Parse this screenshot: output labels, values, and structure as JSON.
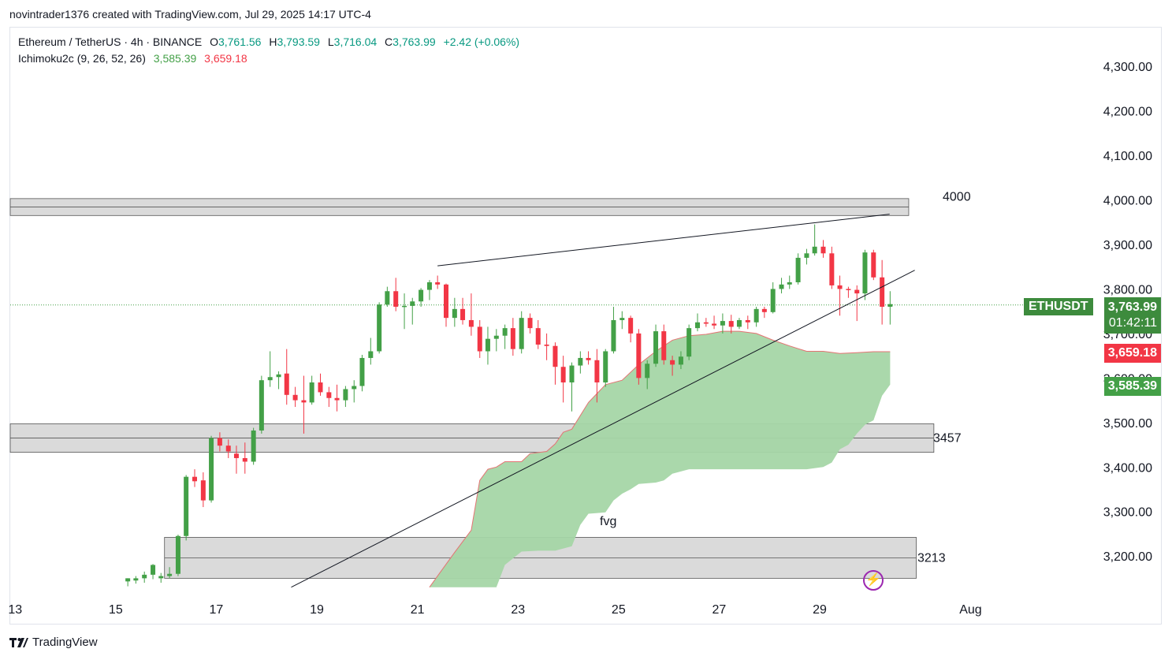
{
  "credit": "novintrader1376 created with TradingView.com, Jul 29, 2025 14:17 UTC-4",
  "legend": {
    "symbol": "Ethereum / TetherUS · 4h · BINANCE",
    "o_label": "O",
    "o": "3,761.56",
    "h_label": "H",
    "h": "3,793.59",
    "l_label": "L",
    "l": "3,716.04",
    "c_label": "C",
    "c": "3,763.99",
    "change": "+2.42 (+0.06%)",
    "indicator": "Ichimoku2c (9, 26, 52, 26)",
    "ind_v1": "3,585.39",
    "ind_v2": "3,659.18"
  },
  "badges": {
    "symbol": "ETHUSDT",
    "price": "3,763.99",
    "countdown": "01:42:11",
    "red_level": "3,659.18",
    "green_level": "3,585.39"
  },
  "annotations": {
    "z4000": "4000",
    "z3457": "3457",
    "z3213": "3213",
    "fvg": "fvg"
  },
  "brand": "TradingView",
  "colors": {
    "up": "#43a047",
    "down": "#f23645",
    "cloud": "#a5d6a7",
    "zone": "#d4d4d4",
    "price_line": "#43a047"
  },
  "icons": {
    "brand": "tradingview-logo-icon",
    "bolt": "lightning-icon"
  },
  "chart_data": {
    "type": "candlestick",
    "title": "Ethereum / TetherUS · 4h · BINANCE",
    "ylim": [
      3130,
      4380
    ],
    "y_ticks": [
      3200,
      3300,
      3400,
      3500,
      3600,
      3700,
      3800,
      3900,
      4000,
      4100,
      4200,
      4300
    ],
    "y_tick_labels": [
      "3,200.00",
      "3,300.00",
      "3,400.00",
      "3,500.00",
      "3,600.00",
      "3,700.00",
      "3,800.00",
      "3,900.00",
      "4,000.00",
      "4,100.00",
      "4,200.00",
      "4,300.00"
    ],
    "x_ticks": [
      {
        "label": "13",
        "x": -8.57
      },
      {
        "label": "15",
        "x": -6.57
      },
      {
        "label": "17",
        "x": -4.57
      },
      {
        "label": "19",
        "x": -2.57
      },
      {
        "label": "21",
        "x": -0.57
      },
      {
        "label": "23",
        "x": 1.43
      },
      {
        "label": "25",
        "x": 3.43
      },
      {
        "label": "27",
        "x": 5.43
      },
      {
        "label": "29",
        "x": 7.43
      },
      {
        "label": "Aug",
        "x": 10.43
      }
    ],
    "candles": [
      [
        -6.33,
        3143,
        3150,
        3132,
        3150
      ],
      [
        -6.17,
        3145,
        3155,
        3138,
        3150
      ],
      [
        -6.0,
        3150,
        3165,
        3140,
        3158
      ],
      [
        -5.83,
        3158,
        3182,
        3148,
        3180
      ],
      [
        -5.67,
        3150,
        3162,
        3140,
        3155
      ],
      [
        -5.5,
        3155,
        3175,
        3150,
        3160
      ],
      [
        -5.33,
        3160,
        3248,
        3155,
        3245
      ],
      [
        -5.17,
        3245,
        3382,
        3235,
        3378
      ],
      [
        -5.0,
        3378,
        3395,
        3355,
        3368
      ],
      [
        -4.83,
        3370,
        3388,
        3310,
        3325
      ],
      [
        -4.67,
        3325,
        3470,
        3320,
        3465
      ],
      [
        -4.5,
        3465,
        3478,
        3435,
        3448
      ],
      [
        -4.33,
        3448,
        3462,
        3420,
        3435
      ],
      [
        -4.17,
        3430,
        3448,
        3385,
        3420
      ],
      [
        -4.0,
        3420,
        3455,
        3385,
        3412
      ],
      [
        -3.83,
        3412,
        3488,
        3405,
        3482
      ],
      [
        -3.67,
        3482,
        3605,
        3475,
        3595
      ],
      [
        -3.5,
        3595,
        3660,
        3580,
        3602
      ],
      [
        -3.33,
        3602,
        3615,
        3575,
        3608
      ],
      [
        -3.17,
        3610,
        3665,
        3540,
        3562
      ],
      [
        -3.0,
        3562,
        3580,
        3535,
        3550
      ],
      [
        -2.83,
        3550,
        3605,
        3475,
        3545
      ],
      [
        -2.67,
        3545,
        3605,
        3540,
        3590
      ],
      [
        -2.5,
        3590,
        3610,
        3560,
        3568
      ],
      [
        -2.33,
        3568,
        3580,
        3535,
        3555
      ],
      [
        -2.17,
        3555,
        3585,
        3525,
        3550
      ],
      [
        -2.0,
        3550,
        3582,
        3535,
        3575
      ],
      [
        -1.83,
        3575,
        3595,
        3545,
        3582
      ],
      [
        -1.67,
        3582,
        3652,
        3570,
        3645
      ],
      [
        -1.5,
        3645,
        3690,
        3630,
        3660
      ],
      [
        -1.33,
        3660,
        3770,
        3655,
        3765
      ],
      [
        -1.17,
        3765,
        3805,
        3760,
        3795
      ],
      [
        -1.0,
        3795,
        3825,
        3750,
        3760
      ],
      [
        -0.83,
        3760,
        3790,
        3710,
        3762
      ],
      [
        -0.67,
        3762,
        3780,
        3720,
        3772
      ],
      [
        -0.5,
        3772,
        3802,
        3760,
        3798
      ],
      [
        -0.33,
        3798,
        3820,
        3775,
        3815
      ],
      [
        -0.17,
        3815,
        3830,
        3800,
        3810
      ],
      [
        0.0,
        3810,
        3812,
        3715,
        3735
      ],
      [
        0.17,
        3735,
        3780,
        3715,
        3755
      ],
      [
        0.33,
        3755,
        3780,
        3720,
        3730
      ],
      [
        0.5,
        3730,
        3790,
        3695,
        3715
      ],
      [
        0.67,
        3715,
        3730,
        3645,
        3660
      ],
      [
        0.83,
        3660,
        3715,
        3630,
        3688
      ],
      [
        1.0,
        3688,
        3710,
        3660,
        3695
      ],
      [
        1.17,
        3695,
        3720,
        3665,
        3712
      ],
      [
        1.33,
        3712,
        3735,
        3650,
        3665
      ],
      [
        1.5,
        3665,
        3750,
        3655,
        3735
      ],
      [
        1.67,
        3735,
        3745,
        3700,
        3712
      ],
      [
        1.83,
        3712,
        3730,
        3665,
        3675
      ],
      [
        2.0,
        3675,
        3700,
        3640,
        3672
      ],
      [
        2.17,
        3672,
        3680,
        3585,
        3625
      ],
      [
        2.33,
        3625,
        3650,
        3545,
        3590
      ],
      [
        2.5,
        3590,
        3635,
        3525,
        3628
      ],
      [
        2.67,
        3628,
        3660,
        3610,
        3645
      ],
      [
        2.83,
        3645,
        3660,
        3630,
        3640
      ],
      [
        3.0,
        3640,
        3665,
        3545,
        3590
      ],
      [
        3.17,
        3590,
        3665,
        3580,
        3660
      ],
      [
        3.33,
        3660,
        3760,
        3655,
        3730
      ],
      [
        3.5,
        3730,
        3750,
        3710,
        3735
      ],
      [
        3.67,
        3735,
        3740,
        3680,
        3700
      ],
      [
        3.83,
        3700,
        3710,
        3585,
        3600
      ],
      [
        4.0,
        3600,
        3640,
        3575,
        3632
      ],
      [
        4.17,
        3632,
        3720,
        3625,
        3705
      ],
      [
        4.33,
        3705,
        3720,
        3630,
        3640
      ],
      [
        4.5,
        3640,
        3650,
        3605,
        3630
      ],
      [
        4.67,
        3630,
        3660,
        3620,
        3648
      ],
      [
        4.83,
        3648,
        3720,
        3640,
        3712
      ],
      [
        5.0,
        3712,
        3745,
        3705,
        3725
      ],
      [
        5.17,
        3725,
        3735,
        3715,
        3722
      ],
      [
        5.33,
        3722,
        3740,
        3710,
        3718
      ],
      [
        5.5,
        3718,
        3745,
        3700,
        3728
      ],
      [
        5.67,
        3728,
        3742,
        3700,
        3715
      ],
      [
        5.83,
        3715,
        3735,
        3710,
        3730
      ],
      [
        6.0,
        3730,
        3740,
        3710,
        3725
      ],
      [
        6.17,
        3725,
        3760,
        3715,
        3755
      ],
      [
        6.33,
        3755,
        3760,
        3735,
        3748
      ],
      [
        6.5,
        3748,
        3815,
        3745,
        3800
      ],
      [
        6.67,
        3800,
        3825,
        3790,
        3810
      ],
      [
        6.83,
        3810,
        3830,
        3800,
        3815
      ],
      [
        7.0,
        3815,
        3880,
        3810,
        3870
      ],
      [
        7.17,
        3870,
        3890,
        3855,
        3880
      ],
      [
        7.33,
        3880,
        3945,
        3875,
        3895
      ],
      [
        7.5,
        3895,
        3910,
        3870,
        3880
      ],
      [
        7.67,
        3880,
        3895,
        3800,
        3808
      ],
      [
        7.83,
        3808,
        3830,
        3740,
        3800
      ],
      [
        8.0,
        3800,
        3805,
        3780,
        3798
      ],
      [
        8.17,
        3798,
        3808,
        3728,
        3790
      ],
      [
        8.33,
        3790,
        3888,
        3775,
        3882
      ],
      [
        8.5,
        3882,
        3888,
        3820,
        3826
      ],
      [
        8.67,
        3826,
        3865,
        3720,
        3760
      ],
      [
        8.83,
        3760,
        3795,
        3720,
        3766
      ]
    ],
    "cloud_upper": [
      [
        -0.33,
        3130
      ],
      [
        0.17,
        3208
      ],
      [
        0.5,
        3258
      ],
      [
        0.67,
        3370
      ],
      [
        0.83,
        3395
      ],
      [
        1.0,
        3400
      ],
      [
        1.17,
        3412
      ],
      [
        1.5,
        3412
      ],
      [
        1.67,
        3430
      ],
      [
        2.0,
        3435
      ],
      [
        2.17,
        3452
      ],
      [
        2.33,
        3478
      ],
      [
        2.5,
        3485
      ],
      [
        2.83,
        3545
      ],
      [
        3.17,
        3585
      ],
      [
        3.5,
        3595
      ],
      [
        3.83,
        3630
      ],
      [
        4.17,
        3660
      ],
      [
        4.5,
        3685
      ],
      [
        4.83,
        3695
      ],
      [
        5.17,
        3698
      ],
      [
        5.5,
        3705
      ],
      [
        5.83,
        3705
      ],
      [
        6.17,
        3700
      ],
      [
        6.5,
        3685
      ],
      [
        6.83,
        3672
      ],
      [
        7.17,
        3660
      ],
      [
        7.5,
        3660
      ],
      [
        7.83,
        3655
      ],
      [
        8.17,
        3657
      ],
      [
        8.5,
        3659
      ],
      [
        8.83,
        3659
      ]
    ],
    "cloud_lower": [
      [
        8.83,
        3585
      ],
      [
        8.67,
        3560
      ],
      [
        8.5,
        3505
      ],
      [
        8.33,
        3495
      ],
      [
        8.17,
        3475
      ],
      [
        8.0,
        3450
      ],
      [
        7.83,
        3440
      ],
      [
        7.67,
        3410
      ],
      [
        7.5,
        3400
      ],
      [
        7.17,
        3395
      ],
      [
        6.83,
        3395
      ],
      [
        6.5,
        3395
      ],
      [
        6.17,
        3395
      ],
      [
        5.83,
        3395
      ],
      [
        5.5,
        3395
      ],
      [
        5.17,
        3395
      ],
      [
        4.83,
        3395
      ],
      [
        4.5,
        3385
      ],
      [
        4.33,
        3370
      ],
      [
        4.17,
        3365
      ],
      [
        3.83,
        3362
      ],
      [
        3.67,
        3350
      ],
      [
        3.5,
        3340
      ],
      [
        3.33,
        3325
      ],
      [
        3.17,
        3298
      ],
      [
        2.83,
        3295
      ],
      [
        2.67,
        3270
      ],
      [
        2.5,
        3222
      ],
      [
        2.17,
        3212
      ],
      [
        1.83,
        3212
      ],
      [
        1.5,
        3210
      ],
      [
        1.17,
        3180
      ],
      [
        1.0,
        3130
      ]
    ],
    "zones": [
      {
        "y_top": 4003,
        "y_bottom": 3965,
        "x0": -9.25,
        "x1": 9.2,
        "label": "4000"
      },
      {
        "y_top": 3497,
        "y_bottom": 3433,
        "x0": -9.25,
        "x1": 9.7,
        "label": "3457"
      },
      {
        "y_top": 3242,
        "y_bottom": 3150,
        "x0": -5.6,
        "x1": 9.35,
        "label": "3213"
      }
    ],
    "trendlines": [
      {
        "x0": -0.17,
        "y0": 3852,
        "x1": 8.82,
        "y1": 3968
      },
      {
        "x0": -3.08,
        "y0": 3130,
        "x1": 9.32,
        "y1": 3842
      }
    ],
    "last_price": 3763.99
  }
}
